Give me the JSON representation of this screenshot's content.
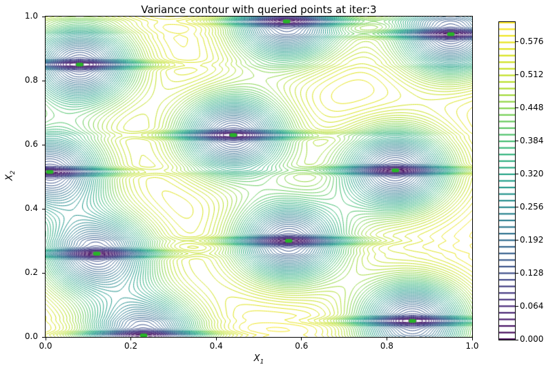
{
  "title": "Variance contour with queried points at iter:3",
  "axes": {
    "xlabel_base": "X",
    "xlabel_sub": "1",
    "ylabel_base": "X",
    "ylabel_sub": "2",
    "x_ticks": [
      "0.0",
      "0.2",
      "0.4",
      "0.6",
      "0.8",
      "1.0"
    ],
    "y_ticks": [
      "0.0",
      "0.2",
      "0.4",
      "0.6",
      "0.8",
      "1.0"
    ]
  },
  "colorbar": {
    "tick_labels": [
      "0.000",
      "0.064",
      "0.128",
      "0.192",
      "0.256",
      "0.320",
      "0.384",
      "0.448",
      "0.512",
      "0.576"
    ],
    "vmin": 0.0,
    "vmax": 0.6144
  },
  "chart_data": {
    "type": "contour",
    "title": "Variance contour with queried points at iter:3",
    "xlabel": "X_1",
    "ylabel": "X_2",
    "xlim": [
      0.0,
      1.0
    ],
    "ylim": [
      0.0,
      1.0
    ],
    "colormap": "viridis",
    "grid": false,
    "levels": {
      "start": 0.0,
      "step": 0.0128,
      "count": 49
    },
    "point_color": "#28b428",
    "queried_points": [
      [
        0.01,
        0.515
      ],
      [
        0.08,
        0.85
      ],
      [
        0.12,
        0.26
      ],
      [
        0.23,
        0.005
      ],
      [
        0.44,
        0.63
      ],
      [
        0.57,
        0.3
      ],
      [
        0.565,
        0.985
      ],
      [
        0.82,
        0.52
      ],
      [
        0.86,
        0.05
      ],
      [
        0.95,
        0.945
      ]
    ],
    "gp": {
      "prior_variance": 0.62,
      "lengthscale": 0.14,
      "rbf_weight": 0.9,
      "groove_weight": 0.1,
      "groove_lengthscale": 0.008
    }
  }
}
